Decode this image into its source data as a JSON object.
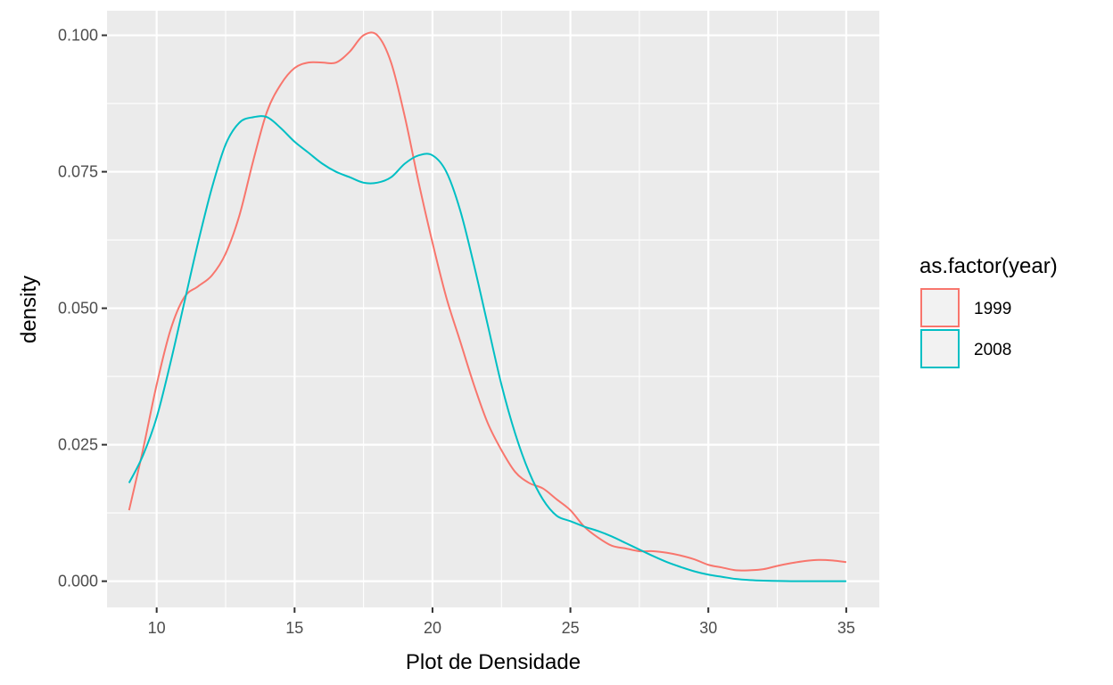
{
  "chart_data": {
    "type": "line",
    "title": "",
    "xlabel": "Plot de Densidade",
    "ylabel": "density",
    "xlim": [
      8.2,
      36.2
    ],
    "ylim": [
      -0.0048,
      0.1045
    ],
    "x_ticks": [
      10,
      15,
      20,
      25,
      30,
      35
    ],
    "x_tick_labels": [
      "10",
      "15",
      "20",
      "25",
      "30",
      "35"
    ],
    "y_ticks": [
      0,
      0.025,
      0.05,
      0.075,
      0.1
    ],
    "y_tick_labels": [
      "0.000",
      "0.025",
      "0.050",
      "0.075",
      "0.100"
    ],
    "grid": true,
    "legend_position": "right",
    "legend_title": "as.factor(year)",
    "colors": {
      "1999": "#f8766d",
      "2008": "#00bfc4",
      "panel": "#ebebeb"
    },
    "series": [
      {
        "name": "1999",
        "color": "#f8766d",
        "x": [
          9,
          9.5,
          10,
          10.5,
          11,
          11.5,
          12,
          12.5,
          13,
          13.5,
          14,
          14.5,
          15,
          15.5,
          16,
          16.5,
          17,
          17.5,
          18,
          18.5,
          19,
          19.5,
          20,
          20.5,
          21,
          21.5,
          22,
          22.5,
          23,
          23.5,
          24,
          24.5,
          25,
          25.5,
          26,
          26.5,
          27,
          27.5,
          28,
          28.5,
          29,
          29.5,
          30,
          30.5,
          31,
          31.5,
          32,
          32.5,
          33,
          33.5,
          34,
          34.5,
          35
        ],
        "y": [
          0.013,
          0.024,
          0.036,
          0.046,
          0.052,
          0.054,
          0.056,
          0.06,
          0.067,
          0.077,
          0.086,
          0.091,
          0.094,
          0.095,
          0.095,
          0.095,
          0.097,
          0.1,
          0.1,
          0.095,
          0.085,
          0.073,
          0.062,
          0.052,
          0.044,
          0.036,
          0.029,
          0.024,
          0.02,
          0.018,
          0.017,
          0.015,
          0.013,
          0.01,
          0.008,
          0.0065,
          0.006,
          0.0055,
          0.0055,
          0.0052,
          0.0047,
          0.004,
          0.003,
          0.0025,
          0.002,
          0.002,
          0.0022,
          0.0028,
          0.0033,
          0.0037,
          0.0039,
          0.0038,
          0.0035
        ]
      },
      {
        "name": "2008",
        "color": "#00bfc4",
        "x": [
          9,
          9.5,
          10,
          10.5,
          11,
          11.5,
          12,
          12.5,
          13,
          13.5,
          14,
          14.5,
          15,
          15.5,
          16,
          16.5,
          17,
          17.5,
          18,
          18.5,
          19,
          19.5,
          20,
          20.5,
          21,
          21.5,
          22,
          22.5,
          23,
          23.5,
          24,
          24.5,
          25,
          25.5,
          26,
          26.5,
          27,
          27.5,
          28,
          28.5,
          29,
          29.5,
          30,
          30.5,
          31,
          31.5,
          32,
          33,
          34,
          35
        ],
        "y": [
          0.018,
          0.023,
          0.03,
          0.04,
          0.051,
          0.062,
          0.072,
          0.08,
          0.084,
          0.085,
          0.085,
          0.083,
          0.0805,
          0.0785,
          0.0765,
          0.075,
          0.074,
          0.073,
          0.073,
          0.074,
          0.0765,
          0.078,
          0.078,
          0.075,
          0.068,
          0.058,
          0.047,
          0.036,
          0.027,
          0.02,
          0.015,
          0.012,
          0.011,
          0.01,
          0.0092,
          0.0082,
          0.007,
          0.0058,
          0.0046,
          0.0035,
          0.0026,
          0.0018,
          0.0012,
          0.0008,
          0.0004,
          0.0002,
          0.0001,
          0,
          0,
          0
        ]
      }
    ]
  }
}
